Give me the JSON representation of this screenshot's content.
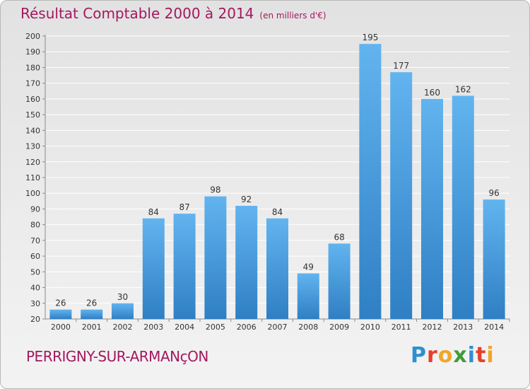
{
  "header": {
    "title": "Résultat Comptable 2000 à 2014",
    "subtitle": "(en milliers d'€)"
  },
  "footer": {
    "commune": "PERRIGNY-SUR-ARMANçON",
    "logo": "Proxiti",
    "logo_colors": [
      "#2f8fd0",
      "#e5402f",
      "#f2a527",
      "#3e9d3a",
      "#2f8fd0",
      "#e5402f",
      "#f2a527"
    ]
  },
  "colors": {
    "title": "#a3185e",
    "bar_top": "#62b4ef",
    "bar_bottom": "#2f7fc4",
    "grid": "#ffffff",
    "axis": "#8a8a8a",
    "text": "#333333"
  },
  "chart_data": {
    "type": "bar",
    "categories": [
      "2000",
      "2001",
      "2002",
      "2003",
      "2004",
      "2005",
      "2006",
      "2007",
      "2008",
      "2009",
      "2010",
      "2011",
      "2012",
      "2013",
      "2014"
    ],
    "values": [
      26,
      26,
      30,
      84,
      87,
      98,
      92,
      84,
      49,
      68,
      195,
      177,
      160,
      162,
      96
    ],
    "ylim": [
      20,
      200
    ],
    "yticks": [
      20,
      30,
      40,
      50,
      60,
      70,
      80,
      90,
      100,
      110,
      120,
      130,
      140,
      150,
      160,
      170,
      180,
      190,
      200
    ],
    "grid": true,
    "data_labels": true
  }
}
